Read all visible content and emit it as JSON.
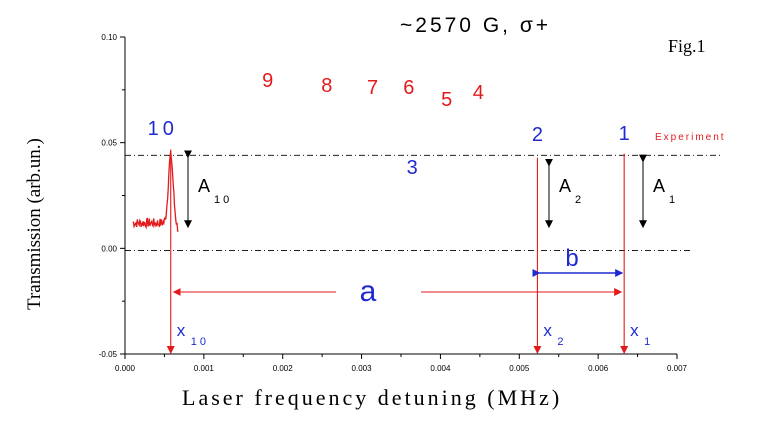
{
  "colors": {
    "curve": "#e31a1c",
    "blue_labels": "#1f2bd0",
    "arrow": "#e31a1c"
  },
  "chart_data": {
    "type": "line",
    "title": "~2570 G,  σ+",
    "figure_label": "Fig.1",
    "xlabel": "Laser frequency detuning (MHz)",
    "ylabel": "Transmission (arb.un.)",
    "xlim": [
      0.0,
      0.007
    ],
    "ylim": [
      -0.05,
      0.1
    ],
    "x_ticks": [
      "0.000",
      "0.001",
      "0.002",
      "0.003",
      "0.004",
      "0.005",
      "0.006",
      "0.007"
    ],
    "y_ticks": [
      "0.10",
      "0.05",
      "0.00",
      "-0.05"
    ],
    "legend": "Experiment",
    "baseline_level": 0.012,
    "reference_lines": {
      "upper": 0.044,
      "zero": -0.001
    },
    "series": [
      {
        "name": "Experiment",
        "peaks": [
          {
            "label": "10",
            "x": 0.00058,
            "y": 0.044,
            "color": "blue"
          },
          {
            "label": "9",
            "x": 0.00181,
            "y": 0.067,
            "color": "red"
          },
          {
            "label": "8",
            "x": 0.00256,
            "y": 0.063,
            "color": "red"
          },
          {
            "label": "7",
            "x": 0.00314,
            "y": 0.063,
            "color": "red"
          },
          {
            "label": "6",
            "x": 0.00365,
            "y": 0.063,
            "color": "red"
          },
          {
            "label": "3",
            "x": 0.00382,
            "y": 0.027,
            "color": "blue"
          },
          {
            "label": "5",
            "x": 0.00408,
            "y": 0.057,
            "color": "red"
          },
          {
            "label": "4",
            "x": 0.00448,
            "y": 0.06,
            "color": "red"
          },
          {
            "label": "2",
            "x": 0.00523,
            "y": 0.04,
            "color": "blue"
          },
          {
            "label": "1",
            "x": 0.00633,
            "y": 0.042,
            "color": "blue"
          }
        ]
      }
    ],
    "annotations": {
      "amplitudes": [
        {
          "main": "A",
          "sub": "10"
        },
        {
          "main": "A",
          "sub": "2"
        },
        {
          "main": "A",
          "sub": "1"
        }
      ],
      "positions": [
        {
          "main": "x",
          "sub": "10"
        },
        {
          "main": "x",
          "sub": "2"
        },
        {
          "main": "x",
          "sub": "1"
        }
      ],
      "spacing_a": "a",
      "spacing_b": "b"
    }
  }
}
